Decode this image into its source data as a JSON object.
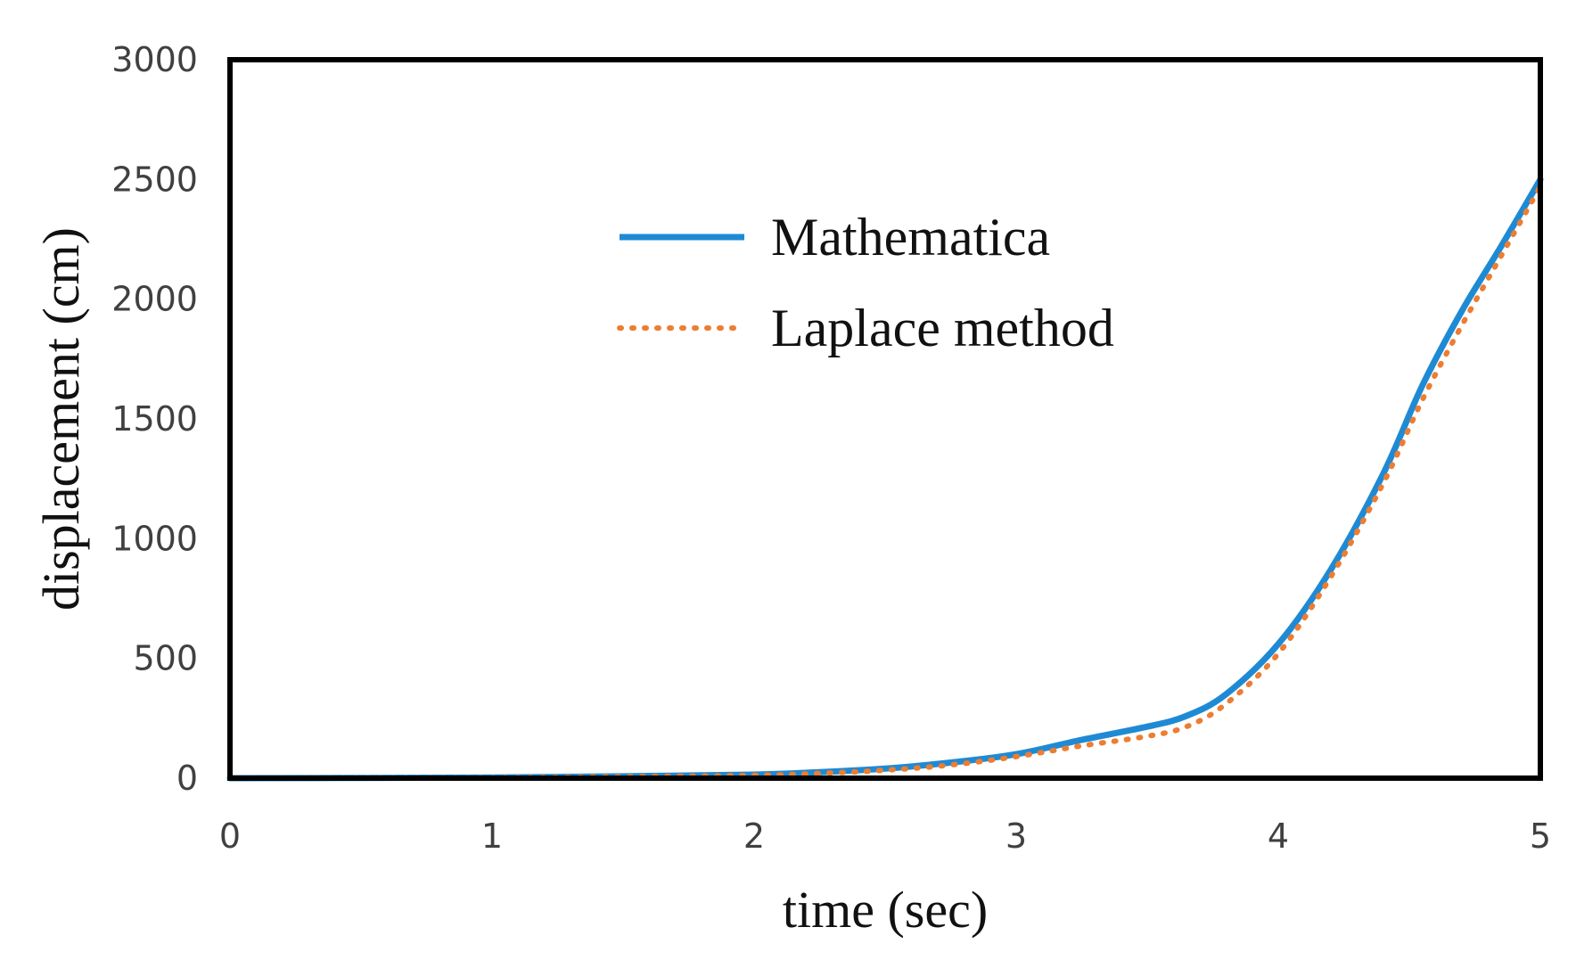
{
  "chart_data": {
    "type": "line",
    "title": "",
    "xlabel": "time (sec)",
    "ylabel": "displacement (cm)",
    "xlim": [
      0,
      5
    ],
    "ylim": [
      0,
      3000
    ],
    "x_ticks": [
      "0",
      "1",
      "2",
      "3",
      "4",
      "5"
    ],
    "y_ticks": [
      "0",
      "500",
      "1000",
      "1500",
      "2000",
      "2500",
      "3000"
    ],
    "grid": false,
    "legend_position": "top-center",
    "series": [
      {
        "name": "Mathematica",
        "color": "#1f8ad4",
        "style": "solid",
        "x": [
          0,
          0.5,
          1,
          1.5,
          2,
          2.25,
          2.5,
          2.75,
          3,
          3.25,
          3.5,
          3.65,
          3.8,
          4,
          4.2,
          4.4,
          4.55,
          4.7,
          4.85,
          5
        ],
        "y": [
          0,
          1,
          3,
          8,
          15,
          25,
          40,
          65,
          100,
          160,
          215,
          260,
          350,
          560,
          870,
          1270,
          1640,
          1950,
          2220,
          2500
        ]
      },
      {
        "name": "Laplace method",
        "color": "#ed7d31",
        "style": "dotted",
        "x": [
          0,
          0.5,
          1,
          1.5,
          2,
          2.25,
          2.5,
          2.75,
          3,
          3.25,
          3.5,
          3.65,
          3.8,
          4,
          4.2,
          4.4,
          4.55,
          4.7,
          4.85,
          5
        ],
        "y": [
          0,
          1,
          2,
          6,
          12,
          20,
          33,
          55,
          90,
          135,
          175,
          215,
          310,
          520,
          840,
          1230,
          1580,
          1890,
          2180,
          2470
        ]
      }
    ]
  }
}
